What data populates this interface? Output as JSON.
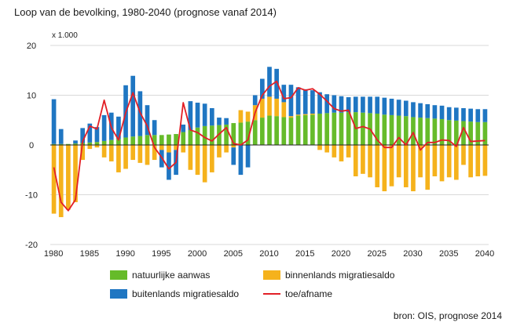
{
  "chart_data": {
    "type": "bar",
    "title": "Loop van de bevolking, 1980-2040 (prognose vanaf 2014)",
    "unit_label": "x 1.000",
    "ylim": [
      -20,
      20
    ],
    "yticks": [
      20,
      10,
      0,
      -10,
      -20
    ],
    "xticks": [
      "1980",
      "1985",
      "1990",
      "1995",
      "2000",
      "2005",
      "2010",
      "2015",
      "2020",
      "2025",
      "2030",
      "2035",
      "2040"
    ],
    "grid": true,
    "legend_position": "bottom",
    "source": "bron: OIS, prognose 2014",
    "years": [
      1980,
      1981,
      1982,
      1983,
      1984,
      1985,
      1986,
      1987,
      1988,
      1989,
      1990,
      1991,
      1992,
      1993,
      1994,
      1995,
      1996,
      1997,
      1998,
      1999,
      2000,
      2001,
      2002,
      2003,
      2004,
      2005,
      2006,
      2007,
      2008,
      2009,
      2010,
      2011,
      2012,
      2013,
      2014,
      2015,
      2016,
      2017,
      2018,
      2019,
      2020,
      2021,
      2022,
      2023,
      2024,
      2025,
      2026,
      2027,
      2028,
      2029,
      2030,
      2031,
      2032,
      2033,
      2034,
      2035,
      2036,
      2037,
      2038,
      2039,
      2040
    ],
    "series": [
      {
        "name": "natuurlijke aanwas",
        "color": "#66bb2a",
        "kind": "bar",
        "values": [
          0.2,
          0.2,
          0.2,
          0.3,
          0.4,
          0.5,
          0.6,
          0.8,
          1.0,
          1.2,
          1.5,
          1.7,
          1.8,
          2.0,
          2.0,
          2.0,
          2.1,
          2.2,
          2.6,
          3.0,
          3.5,
          3.8,
          3.9,
          4.0,
          4.1,
          4.4,
          4.5,
          4.7,
          5.0,
          5.5,
          5.9,
          5.8,
          5.6,
          5.5,
          5.9,
          6.0,
          6.1,
          6.3,
          6.4,
          6.5,
          6.5,
          6.6,
          6.6,
          6.5,
          6.4,
          6.3,
          6.1,
          6.0,
          5.9,
          5.8,
          5.6,
          5.5,
          5.4,
          5.3,
          5.2,
          5.0,
          4.9,
          4.8,
          4.7,
          4.6,
          4.6
        ]
      },
      {
        "name": "binnenlands migratiesaldo",
        "color": "#f5b21c",
        "kind": "bar",
        "values": [
          -13.8,
          -14.5,
          -13.0,
          -11.5,
          -3.0,
          -0.8,
          -0.5,
          -2.5,
          -3.3,
          -5.5,
          -4.8,
          -3.0,
          -3.6,
          -4.0,
          -3.0,
          -1.0,
          -1.5,
          -1.0,
          -1.5,
          -5.0,
          -6.0,
          -7.5,
          -5.5,
          -2.5,
          -1.5,
          -0.5,
          2.5,
          2.0,
          3.0,
          3.8,
          3.8,
          3.5,
          3.0,
          0.3,
          0.2,
          0.2,
          0.2,
          -1.0,
          -1.5,
          -2.5,
          -3.3,
          -2.5,
          -6.3,
          -5.8,
          -6.5,
          -8.5,
          -9.3,
          -8.3,
          -6.5,
          -8.5,
          -9.3,
          -6.5,
          -9.0,
          -6.3,
          -7.3,
          -6.5,
          -7.0,
          -4.0,
          -6.5,
          -6.3,
          -6.2
        ]
      },
      {
        "name": "buitenlands migratiesaldo",
        "color": "#1f76c2",
        "kind": "bar",
        "values": [
          9.0,
          3.0,
          0.0,
          0.6,
          3.0,
          3.8,
          3.0,
          5.2,
          5.5,
          4.5,
          10.5,
          12.2,
          9.0,
          6.0,
          3.0,
          -3.5,
          -5.5,
          -5.0,
          1.5,
          5.8,
          5.0,
          4.5,
          3.5,
          1.5,
          1.3,
          -3.5,
          -6.0,
          -4.5,
          2.0,
          4.0,
          6.0,
          6.0,
          3.5,
          6.3,
          5.5,
          5.0,
          4.7,
          4.3,
          3.8,
          3.5,
          3.3,
          3.0,
          3.1,
          3.2,
          3.3,
          3.4,
          3.4,
          3.3,
          3.2,
          3.1,
          3.0,
          2.9,
          2.8,
          2.7,
          2.7,
          2.6,
          2.6,
          2.6,
          2.6,
          2.6,
          2.6
        ]
      },
      {
        "name": "toe/afname",
        "color": "#e21f26",
        "kind": "line",
        "values": [
          -4.5,
          -11.5,
          -13.2,
          -11.0,
          0.7,
          3.8,
          3.2,
          9.0,
          3.5,
          1.0,
          6.5,
          10.5,
          6.5,
          3.8,
          -0.5,
          -2.5,
          -4.8,
          -3.5,
          8.5,
          3.0,
          2.5,
          1.5,
          0.8,
          2.2,
          3.5,
          0.3,
          0.0,
          1.0,
          6.5,
          10.0,
          11.8,
          12.8,
          9.3,
          9.5,
          11.5,
          11.0,
          11.3,
          10.2,
          8.8,
          7.3,
          6.8,
          7.0,
          3.3,
          3.7,
          3.2,
          1.0,
          -0.5,
          -0.5,
          1.5,
          0.0,
          2.5,
          -1.0,
          0.5,
          0.5,
          1.0,
          0.9,
          -0.3,
          3.5,
          0.7,
          0.8,
          0.9
        ]
      }
    ]
  }
}
